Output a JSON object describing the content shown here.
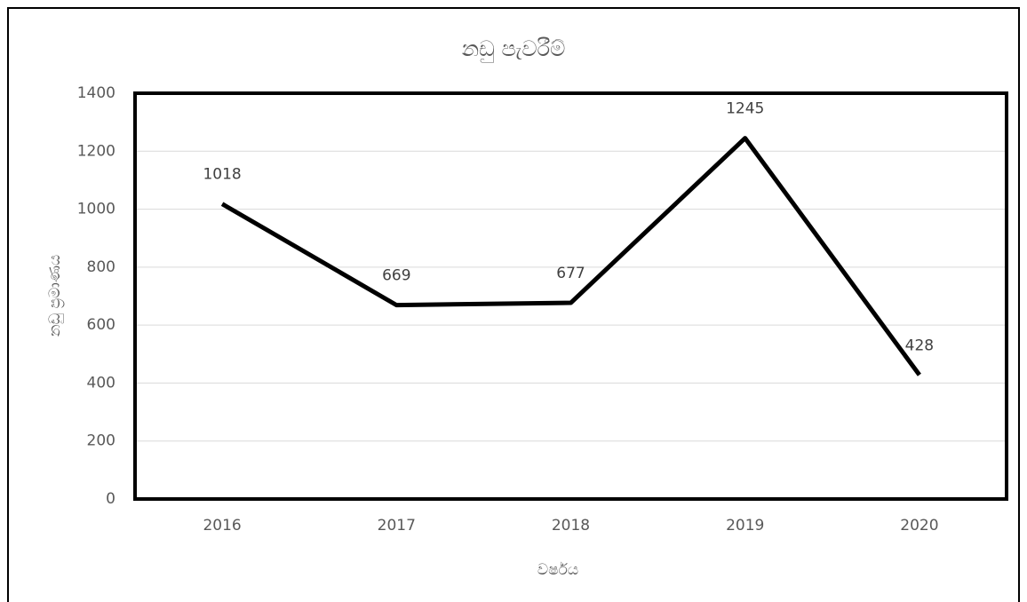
{
  "chart_data": {
    "type": "line",
    "title": "නඩු පැවරීම්",
    "x_label": "වර්ෂය",
    "y_label": "නඩු ප්‍රමාණය",
    "categories": [
      "2016",
      "2017",
      "2018",
      "2019",
      "2020"
    ],
    "values": [
      1018,
      669,
      677,
      1245,
      428
    ],
    "color": "#000000",
    "ylim": [
      0,
      1400
    ],
    "yticks": [
      0,
      200,
      400,
      600,
      800,
      1000,
      1200,
      1400
    ],
    "grid": true,
    "data_labels": true
  }
}
